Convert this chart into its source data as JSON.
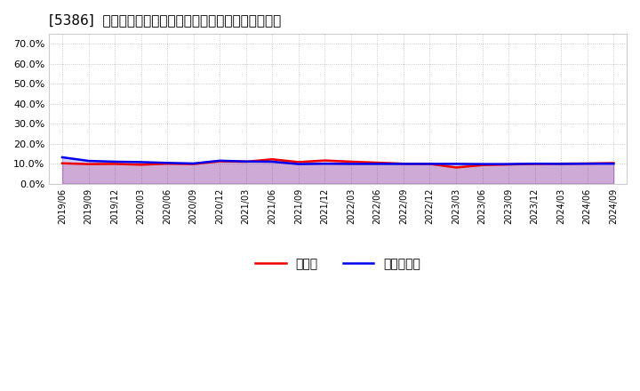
{
  "title": "[5386]  現預金、有利子負債の総資産に対する比率の推移",
  "ylim": [
    0.0,
    0.75
  ],
  "yticks": [
    0.0,
    0.1,
    0.2,
    0.3,
    0.4,
    0.5,
    0.6,
    0.7
  ],
  "background_color": "#ffffff",
  "grid_color": "#bbbbbb",
  "line1_color": "#ee0000",
  "line2_color": "#0000ee",
  "legend_labels": [
    "現預金",
    "有利子負債"
  ],
  "dates": [
    "2019/06",
    "2019/09",
    "2019/12",
    "2020/03",
    "2020/06",
    "2020/09",
    "2020/12",
    "2021/03",
    "2021/06",
    "2021/09",
    "2021/12",
    "2022/03",
    "2022/06",
    "2022/09",
    "2022/12",
    "2023/03",
    "2023/06",
    "2023/09",
    "2023/12",
    "2024/03",
    "2024/06",
    "2024/09"
  ],
  "cash_ratio": [
    0.102,
    0.098,
    0.099,
    0.095,
    0.1,
    0.098,
    0.112,
    0.11,
    0.122,
    0.108,
    0.116,
    0.11,
    0.105,
    0.1,
    0.099,
    0.081,
    0.093,
    0.096,
    0.099,
    0.1,
    0.101,
    0.103
  ],
  "debt_ratio": [
    0.132,
    0.114,
    0.11,
    0.108,
    0.104,
    0.101,
    0.115,
    0.111,
    0.11,
    0.098,
    0.1,
    0.099,
    0.099,
    0.099,
    0.099,
    0.099,
    0.098,
    0.098,
    0.1,
    0.099,
    0.1,
    0.1
  ]
}
